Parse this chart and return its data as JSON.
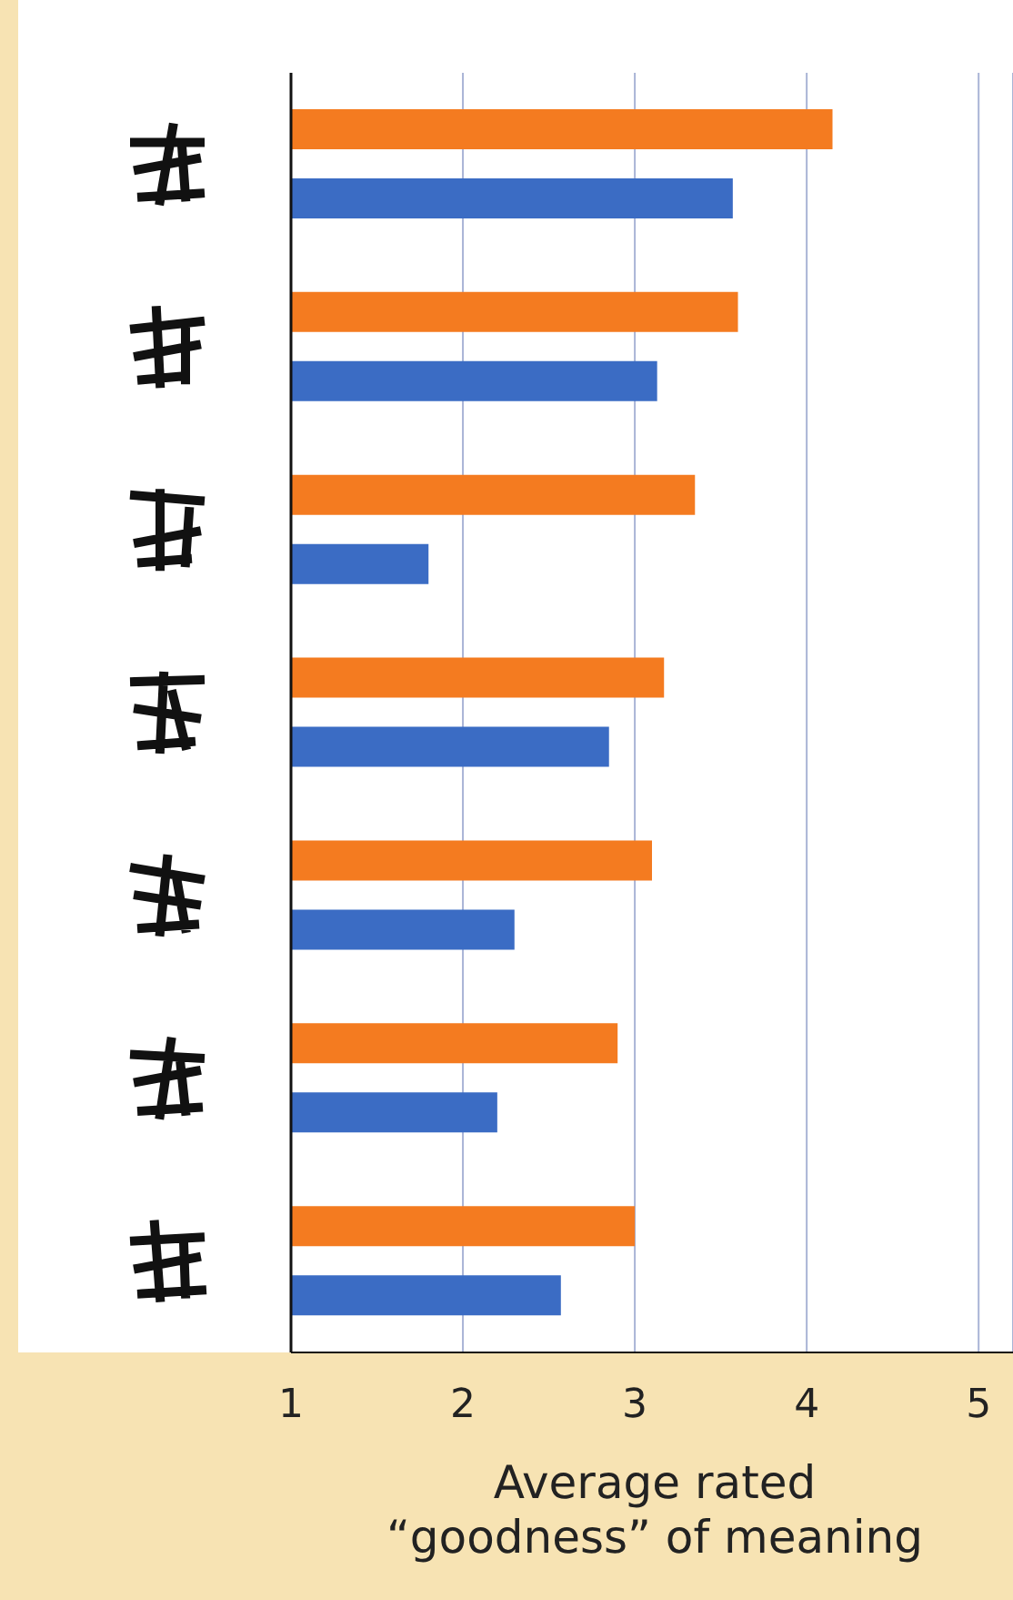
{
  "chart_data": {
    "type": "bar",
    "orientation": "horizontal",
    "categories": [
      null,
      null,
      null,
      null,
      null,
      null,
      null
    ],
    "series": [
      {
        "color": "#f47b20",
        "values": [
          4.15,
          3.6,
          3.35,
          3.17,
          3.1,
          2.9,
          3.0
        ]
      },
      {
        "color": "#3b6cc4",
        "values": [
          3.57,
          3.13,
          1.8,
          2.85,
          2.3,
          2.2,
          2.57
        ]
      }
    ],
    "xlim": [
      1,
      5.2
    ],
    "xticks": [
      1,
      2,
      3,
      4,
      5
    ],
    "grid": "x",
    "xlabel": "Average rated\n“goodness” of meaning"
  }
}
